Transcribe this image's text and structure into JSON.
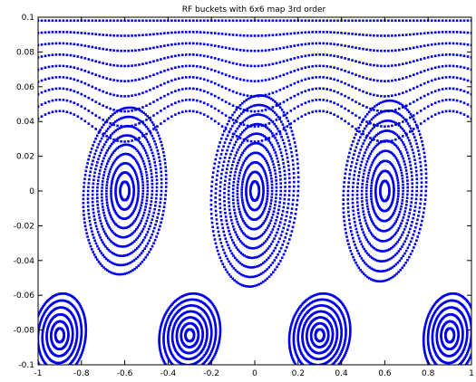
{
  "chart_data": {
    "type": "scatter",
    "title": "RF buckets with 6x6 map 3rd order",
    "xlabel": "",
    "ylabel": "",
    "xlim": [
      -1,
      1
    ],
    "ylim": [
      -0.1,
      0.1
    ],
    "x_ticks": [
      -1,
      -0.8,
      -0.6,
      -0.4,
      -0.2,
      0,
      0.2,
      0.4,
      0.6,
      0.8,
      1
    ],
    "x_tick_labels": [
      "-1",
      "-0.8",
      "-0.6",
      "-0.4",
      "-0.2",
      "0",
      "0.2",
      "0.4",
      "0.6",
      "0.8",
      "1"
    ],
    "y_ticks": [
      -0.1,
      -0.08,
      -0.06,
      -0.04,
      -0.02,
      0,
      0.02,
      0.04,
      0.06,
      0.08,
      0.1
    ],
    "y_tick_labels": [
      "-0.1",
      "-0.08",
      "-0.06",
      "-0.04",
      "-0.02",
      "0",
      "0.02",
      "0.04",
      "0.06",
      "0.08",
      "0.1"
    ],
    "grid": false,
    "marker_color": "#0000ee",
    "buckets": [
      {
        "center_x": -0.6,
        "center_y": 0.0,
        "half_width_x": 0.19,
        "half_height_y": 0.048,
        "rings": 9
      },
      {
        "center_x": 0.0,
        "center_y": 0.0,
        "half_width_x": 0.2,
        "half_height_y": 0.055,
        "rings": 10
      },
      {
        "center_x": 0.6,
        "center_y": 0.0,
        "half_width_x": 0.19,
        "half_height_y": 0.052,
        "rings": 9
      },
      {
        "center_x": -0.3,
        "center_y": -0.083,
        "half_width_x": 0.14,
        "half_height_y": 0.024,
        "rings": 7
      },
      {
        "center_x": 0.3,
        "center_y": -0.083,
        "half_width_x": 0.14,
        "half_height_y": 0.024,
        "rings": 7
      },
      {
        "center_x": -0.9,
        "center_y": -0.083,
        "half_width_x": 0.12,
        "half_height_y": 0.024,
        "rings": 6
      },
      {
        "center_x": 0.9,
        "center_y": -0.083,
        "half_width_x": 0.12,
        "half_height_y": 0.024,
        "rings": 6
      }
    ]
  }
}
